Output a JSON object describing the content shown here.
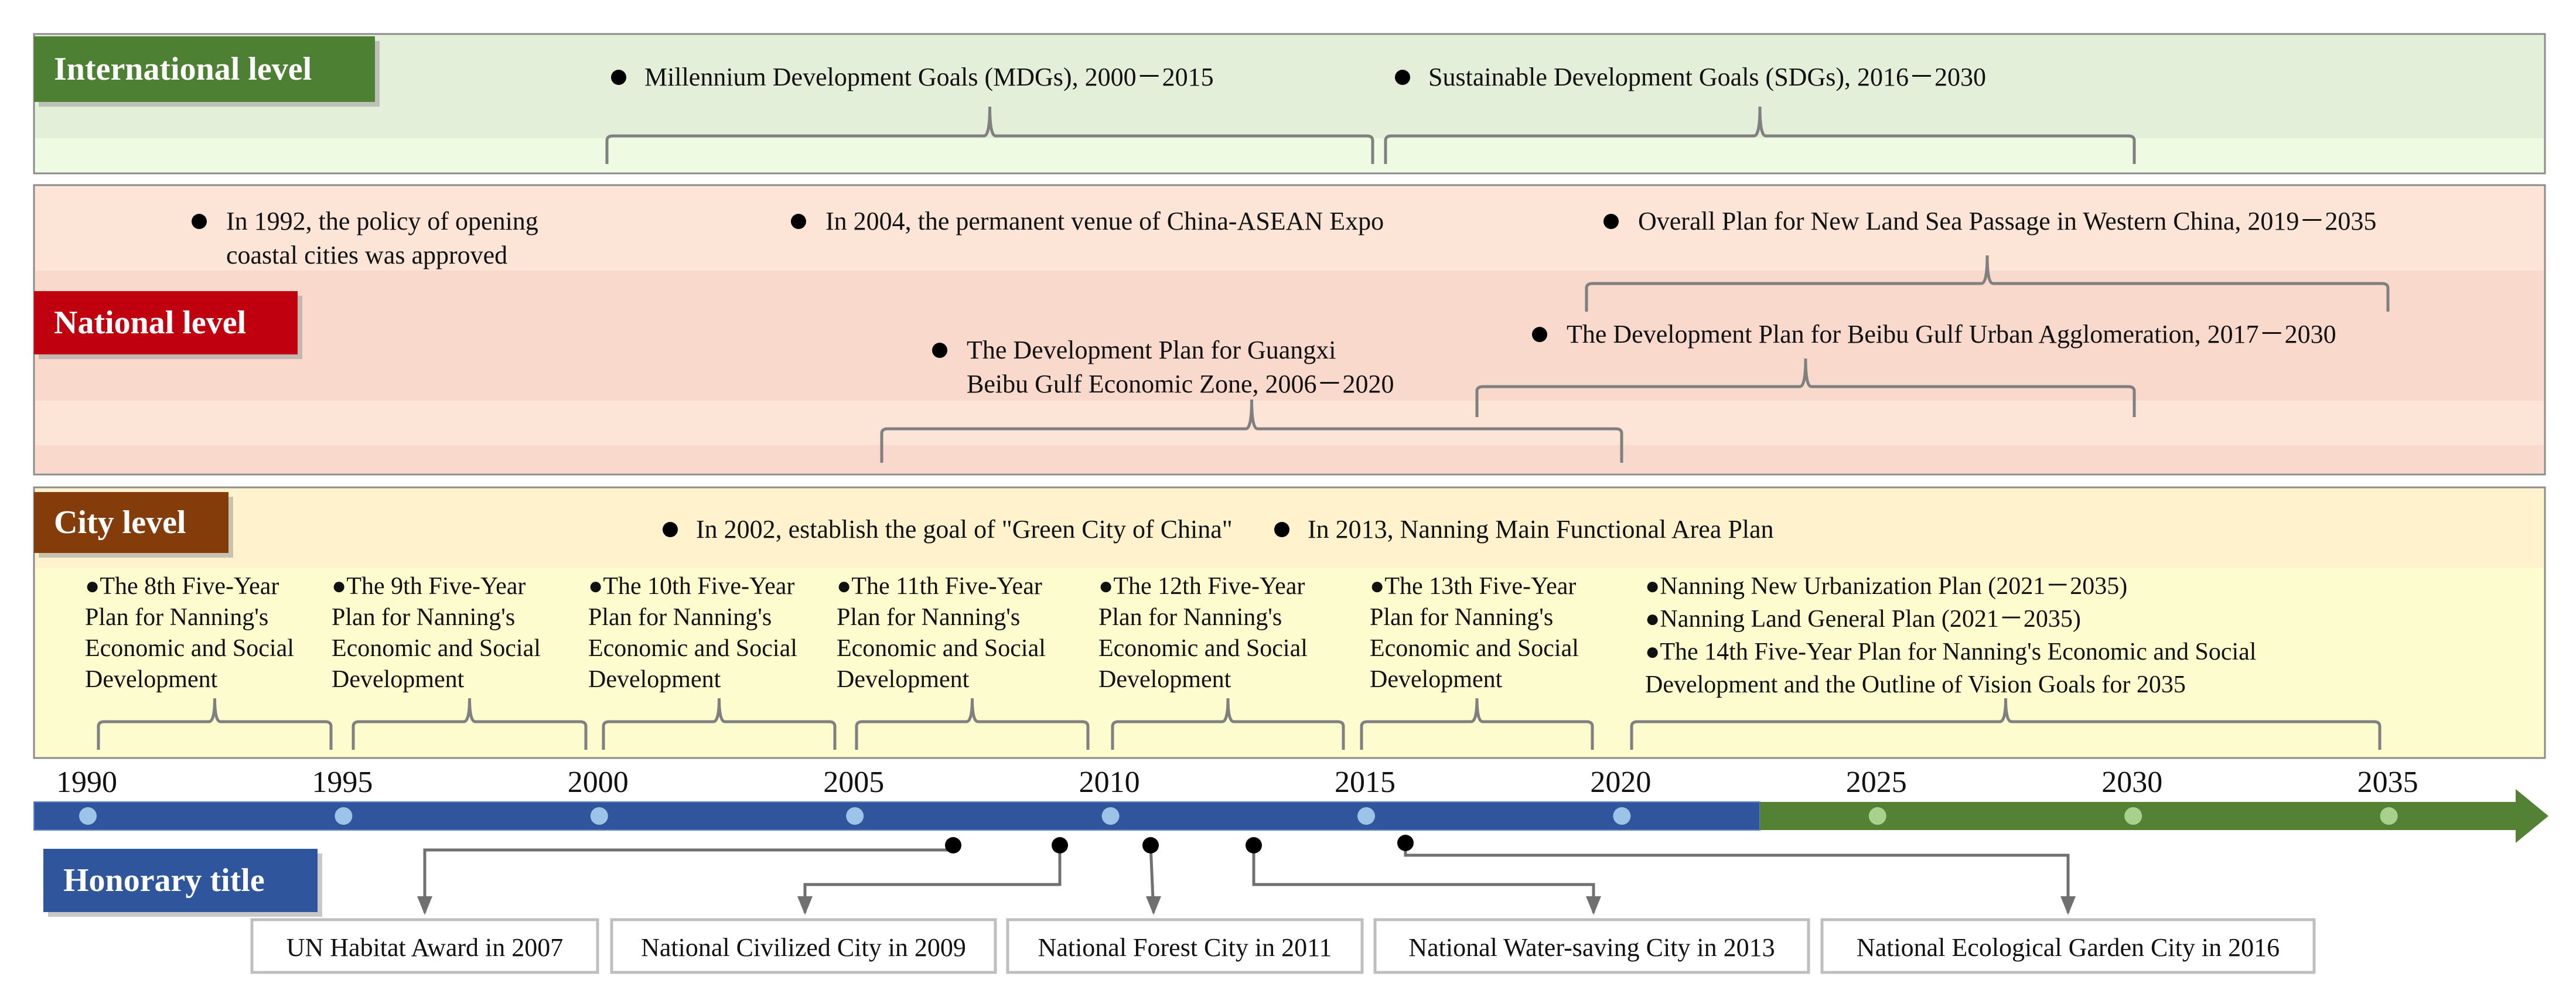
{
  "colors": {
    "international_bg": "#e3efd9",
    "international_bg_light": "#eefae1",
    "international_label": "#4e8034",
    "national_bg": "#fce4d6",
    "national_band": "#f8d9cb",
    "national_label": "#c0000e",
    "city_bg": "#fff2cc",
    "city_bg_light": "#fdfccf",
    "city_label": "#843c0b",
    "honorary_label": "#2f569d",
    "axis_blue": "#2f569d",
    "axis_green": "#548235",
    "bracket": "#808080",
    "text": "#111111"
  },
  "sections": {
    "international": {
      "label": "International level"
    },
    "national": {
      "label": "National level"
    },
    "city": {
      "label": "City level"
    },
    "honorary": {
      "label": "Honorary title"
    }
  },
  "international_items": [
    {
      "text": "Millennium Development Goals (MDGs), 2000－2015",
      "start": 2000,
      "end": 2015
    },
    {
      "text": "Sustainable Development Goals (SDGs), 2016－2030",
      "start": 2016,
      "end": 2030
    }
  ],
  "national_items": [
    {
      "lines": [
        "In 1992, the policy of opening",
        "coastal cities was approved"
      ]
    },
    {
      "lines": [
        "In 2004, the permanent venue of China-ASEAN Expo"
      ]
    },
    {
      "lines": [
        "Overall Plan for New Land Sea Passage in Western China, 2019－2035"
      ],
      "start": 2019,
      "end": 2035
    },
    {
      "lines": [
        "The Development Plan for Beibu Gulf Urban Agglomeration, 2017－2030"
      ],
      "start": 2017,
      "end": 2030
    },
    {
      "lines": [
        "The Development Plan for Guangxi",
        "Beibu Gulf Economic Zone, 2006－2020"
      ],
      "start": 2006,
      "end": 2020
    }
  ],
  "city_items": [
    {
      "text": "In 2002, establish the goal of \"Green City of China\""
    },
    {
      "text": "In 2013, Nanning Main Functional Area Plan"
    }
  ],
  "five_year_plans": [
    {
      "lines": [
        "●The 8th Five-Year",
        "Plan for Nanning's",
        "Economic and Social",
        "Development"
      ],
      "start": 1991,
      "end": 1995
    },
    {
      "lines": [
        "●The 9th Five-Year",
        "Plan for Nanning's",
        "Economic and Social",
        "Development"
      ],
      "start": 1996,
      "end": 2000
    },
    {
      "lines": [
        "●The 10th Five-Year",
        "Plan for Nanning's",
        "Economic and Social",
        "Development"
      ],
      "start": 2001,
      "end": 2005
    },
    {
      "lines": [
        "●The 11th Five-Year",
        "Plan for Nanning's",
        "Economic and Social",
        "Development"
      ],
      "start": 2006,
      "end": 2010
    },
    {
      "lines": [
        "●The 12th Five-Year",
        "Plan for Nanning's",
        "Economic and Social",
        "Development"
      ],
      "start": 2011,
      "end": 2015
    },
    {
      "lines": [
        "●The 13th Five-Year",
        "Plan for Nanning's",
        "Economic and Social",
        "Development"
      ],
      "start": 2016,
      "end": 2020
    },
    {
      "lines": [
        "●Nanning New Urbanization Plan (2021－2035)",
        "●Nanning Land General Plan (2021－2035)",
        "●The 14th Five-Year Plan for Nanning's Economic and Social",
        "Development and the Outline of Vision Goals for 2035"
      ],
      "start": 2021,
      "end": 2035
    }
  ],
  "axis": {
    "ticks": [
      "1990",
      "1995",
      "2000",
      "2005",
      "2010",
      "2015",
      "2020",
      "2025",
      "2030",
      "2035"
    ],
    "current_year_split": 2022.7
  },
  "honors": [
    {
      "label": "UN Habitat Award in 2007",
      "year": 2007
    },
    {
      "label": "National Civilized City in 2009",
      "year": 2009
    },
    {
      "label": "National Forest City in 2011",
      "year": 2011
    },
    {
      "label": "National Water-saving City in 2013",
      "year": 2013
    },
    {
      "label": "National Ecological Garden City in 2016",
      "year": 2016
    }
  ]
}
